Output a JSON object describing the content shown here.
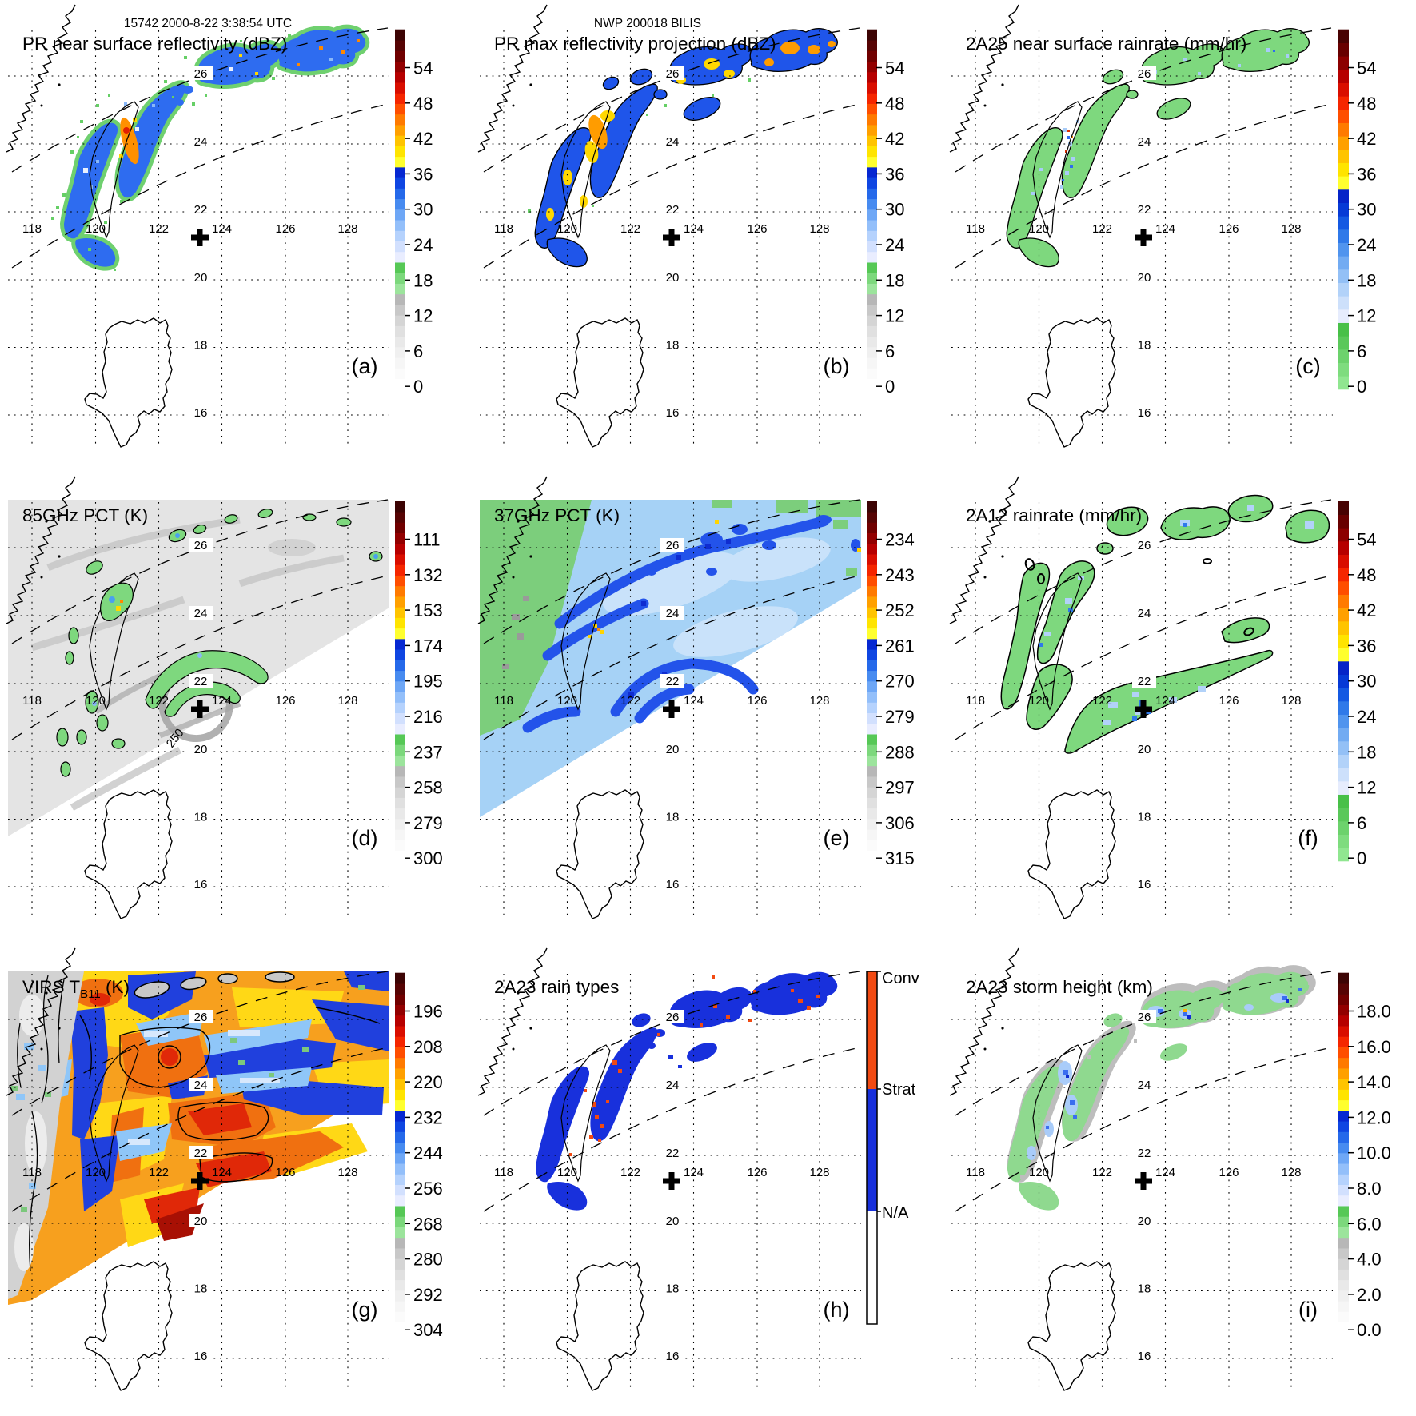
{
  "figure": {
    "header_left": "15742 2000-8-22 3:38:54 UTC",
    "header_center": "NWP 200018 BILIS"
  },
  "grid": {
    "lon_labels": [
      "118",
      "120",
      "122",
      "124",
      "126",
      "128"
    ],
    "lat_labels": [
      "26",
      "24",
      "22",
      "20",
      "18",
      "16"
    ]
  },
  "colors": {
    "conv": "#f24a12",
    "strat": "#1830dc",
    "na": "#ffffff",
    "ramp_standard": [
      "#ffffff",
      "#fbfbfb",
      "#f6f6f6",
      "#f0f0f0",
      "#e9e9e9",
      "#e0e0e0",
      "#d5d5d5",
      "#c8c8c8",
      "#b7b7b7",
      "#9ce49c",
      "#7cd87c",
      "#56c856",
      "#e9edff",
      "#d2e0fe",
      "#b5d2fd",
      "#93bffa",
      "#6ea7f6",
      "#478bf0",
      "#2569ea",
      "#0f46e2",
      "#0628d2",
      "#ffff2e",
      "#ffe400",
      "#ffc400",
      "#ffa000",
      "#ff7a00",
      "#ff4e00",
      "#f52600",
      "#d90e00",
      "#b60000",
      "#920000",
      "#700000",
      "#560404",
      "#3c0404"
    ],
    "ramp_rain": [
      "#90e690",
      "#7edc7e",
      "#6cd26c",
      "#5ac85a",
      "#48c048",
      "#e6ecfd",
      "#cde0fb",
      "#b2d2f9",
      "#93c0f6",
      "#72abf2",
      "#5094ee",
      "#2f79e9",
      "#1459e2",
      "#063ad6",
      "#0524c8",
      "#ffff2e",
      "#ffe400",
      "#ffc400",
      "#ffa000",
      "#ff7a00",
      "#ff4e00",
      "#f52600",
      "#d90e00",
      "#b60000",
      "#8c0000",
      "#680000",
      "#480202"
    ]
  },
  "annotations": {
    "pct_contour_label": "250"
  },
  "chart_data": {
    "type": "heatmap",
    "layout": "3x3 satellite map panels with colorbars",
    "extent": {
      "lon": [
        117.2,
        129.3
      ],
      "lat": [
        14.9,
        27.4
      ]
    },
    "storm_marker": {
      "symbol": "+",
      "lon": 123.3,
      "lat": 21.3
    },
    "swath_boundaries": "two dashed curves (PR swath edges)",
    "panels": [
      {
        "letter": "(a)",
        "title": "PR near surface reflectivity (dBZ)",
        "bar": "standard",
        "ticks": [
          "54",
          "48",
          "42",
          "36",
          "30",
          "24",
          "18",
          "12",
          "6",
          "0"
        ]
      },
      {
        "letter": "(b)",
        "title": "PR max reflectivity projection (dBZ)",
        "bar": "standard",
        "ticks": [
          "54",
          "48",
          "42",
          "36",
          "30",
          "24",
          "18",
          "12",
          "6",
          "0"
        ]
      },
      {
        "letter": "(c)",
        "title": "2A25 near surface rainrate (mm/hr)",
        "bar": "rain",
        "ticks": [
          "54",
          "48",
          "42",
          "36",
          "30",
          "24",
          "18",
          "12",
          "6",
          "0"
        ]
      },
      {
        "letter": "(d)",
        "title": "85GHz PCT (K)",
        "bar": "standard",
        "ticks": [
          "111",
          "132",
          "153",
          "174",
          "195",
          "216",
          "237",
          "258",
          "279",
          "300"
        ]
      },
      {
        "letter": "(e)",
        "title": "37GHz PCT (K)",
        "bar": "standard",
        "ticks": [
          "234",
          "243",
          "252",
          "261",
          "270",
          "279",
          "288",
          "297",
          "306",
          "315"
        ]
      },
      {
        "letter": "(f)",
        "title": "2A12 rainrate (mm/hr)",
        "bar": "rain",
        "ticks": [
          "54",
          "48",
          "42",
          "36",
          "30",
          "24",
          "18",
          "12",
          "6",
          "0"
        ]
      },
      {
        "letter": "(g)",
        "title_main": "VIRS T",
        "title_sub": "B11",
        "title_tail": " (K)",
        "bar": "standard",
        "ticks": [
          "196",
          "208",
          "220",
          "232",
          "244",
          "256",
          "268",
          "280",
          "292",
          "304"
        ]
      },
      {
        "letter": "(h)",
        "title": "2A23 rain types",
        "bar": "categorical",
        "categories": [
          "Conv",
          "Strat",
          "N/A"
        ]
      },
      {
        "letter": "(i)",
        "title": "2A23 storm height (km)",
        "bar": "standard",
        "ticks": [
          "18.0",
          "16.0",
          "14.0",
          "12.0",
          "10.0",
          "8.0",
          "6.0",
          "4.0",
          "2.0",
          "0.0"
        ]
      }
    ]
  }
}
